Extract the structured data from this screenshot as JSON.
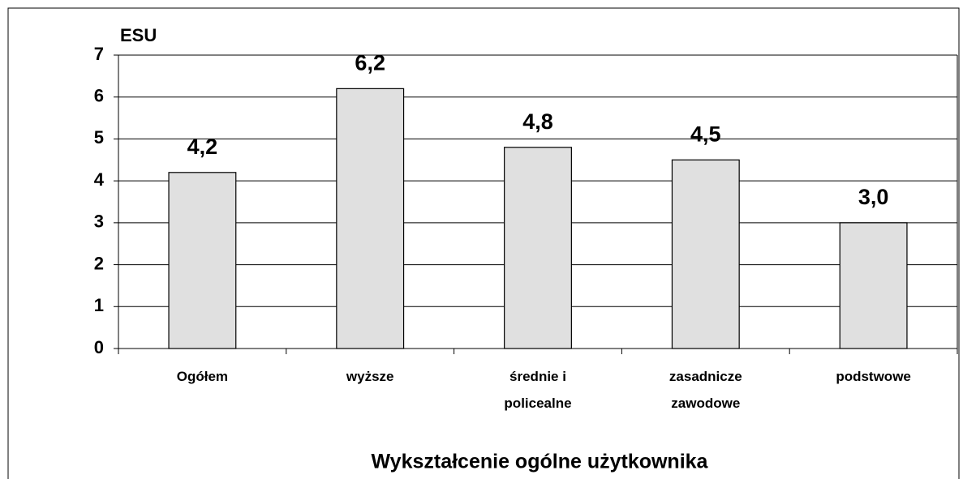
{
  "chart_data": {
    "type": "bar",
    "ylabel": "ESU",
    "xlabel": "Wykształcenie ogólne użytkownika",
    "categories": [
      "Ogółem",
      "wyższe",
      "średnie i policealne",
      "zasadnicze zawodowe",
      "podstwowe"
    ],
    "values": [
      4.2,
      6.2,
      4.8,
      4.5,
      3.0
    ],
    "value_labels": [
      "4,2",
      "6,2",
      "4,8",
      "4,5",
      "3,0"
    ],
    "color": "#e0e0e0",
    "ylim": [
      0,
      7
    ],
    "yticks": [
      0,
      1,
      2,
      3,
      4,
      5,
      6,
      7
    ],
    "grid": true
  }
}
